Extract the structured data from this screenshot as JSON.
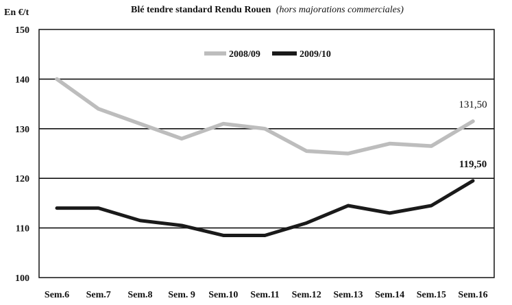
{
  "chart_data": {
    "type": "line",
    "title": "Blé tendre standard Rendu Rouen",
    "subtitle": "(hors majorations commerciales)",
    "ylabel": "En €/t",
    "xlabel": "",
    "ylim": [
      100,
      150
    ],
    "yticks": [
      100,
      110,
      120,
      130,
      140,
      150
    ],
    "grid": true,
    "legend_position": "top-center",
    "categories": [
      "Sem.6",
      "Sem.7",
      "Sem.8",
      "Sem. 9",
      "Sem.10",
      "Sem.11",
      "Sem.12",
      "Sem.13",
      "Sem.14",
      "Sem.15",
      "Sem.16"
    ],
    "series": [
      {
        "name": "2008/09",
        "color": "#bdbdbd",
        "values": [
          140,
          134,
          131,
          128,
          131,
          130,
          125.5,
          125,
          127,
          126.5,
          131.5
        ],
        "end_label": "131,50"
      },
      {
        "name": "2009/10",
        "color": "#1a1a1a",
        "values": [
          114,
          114,
          111.5,
          110.5,
          108.5,
          108.5,
          111,
          114.5,
          113,
          114.5,
          119.5
        ],
        "end_label": "119,50"
      }
    ]
  }
}
